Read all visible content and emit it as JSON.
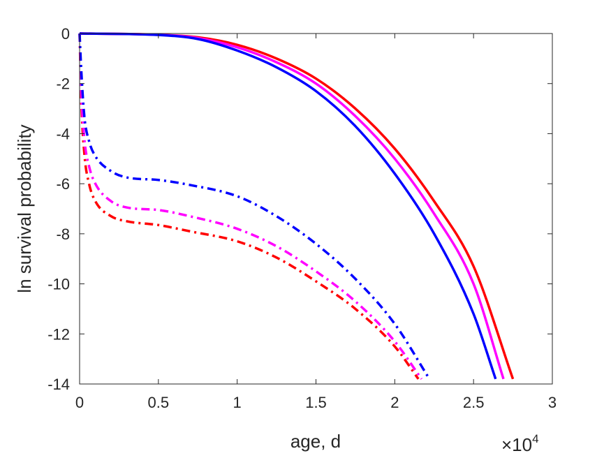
{
  "chart_data": {
    "type": "line",
    "title": "",
    "xlabel": "age, d",
    "ylabel": "ln survival probability",
    "x_exponent_label": "×10",
    "x_exponent_power": "4",
    "xlim": [
      0,
      30000
    ],
    "ylim": [
      -14,
      0
    ],
    "x_ticks": [
      0,
      5000,
      10000,
      15000,
      20000,
      25000,
      30000
    ],
    "x_tick_labels": [
      "0",
      "0.5",
      "1",
      "1.5",
      "2",
      "2.5",
      "3"
    ],
    "y_ticks": [
      0,
      -2,
      -4,
      -6,
      -8,
      -10,
      -12,
      -14
    ],
    "y_tick_labels": [
      "0",
      "-2",
      "-4",
      "-6",
      "-8",
      "-10",
      "-12",
      "-14"
    ],
    "grid": false,
    "legend": "none",
    "series": [
      {
        "color": "#ff0000",
        "style": "solid",
        "points": [
          [
            0,
            0
          ],
          [
            5000,
            -0.05
          ],
          [
            7500,
            -0.15
          ],
          [
            10000,
            -0.45
          ],
          [
            12500,
            -1.0
          ],
          [
            15000,
            -1.8
          ],
          [
            17500,
            -3.0
          ],
          [
            20000,
            -4.6
          ],
          [
            22500,
            -6.7
          ],
          [
            25000,
            -9.3
          ],
          [
            27500,
            -13.8
          ]
        ]
      },
      {
        "color": "#ff00ff",
        "style": "solid",
        "points": [
          [
            0,
            0
          ],
          [
            5000,
            -0.05
          ],
          [
            7500,
            -0.18
          ],
          [
            10000,
            -0.55
          ],
          [
            12500,
            -1.15
          ],
          [
            15000,
            -2.0
          ],
          [
            17500,
            -3.3
          ],
          [
            20000,
            -5.0
          ],
          [
            22500,
            -7.2
          ],
          [
            25000,
            -10.0
          ],
          [
            26900,
            -13.8
          ]
        ]
      },
      {
        "color": "#0000ff",
        "style": "solid",
        "points": [
          [
            0,
            0
          ],
          [
            5000,
            -0.06
          ],
          [
            7500,
            -0.22
          ],
          [
            10000,
            -0.68
          ],
          [
            12500,
            -1.35
          ],
          [
            15000,
            -2.3
          ],
          [
            17500,
            -3.7
          ],
          [
            20000,
            -5.6
          ],
          [
            22500,
            -8.0
          ],
          [
            25000,
            -11.2
          ],
          [
            26400,
            -13.8
          ]
        ]
      },
      {
        "color": "#ff0000",
        "style": "dashdot",
        "points": [
          [
            0,
            0
          ],
          [
            100,
            -2.6
          ],
          [
            300,
            -4.8
          ],
          [
            600,
            -6.0
          ],
          [
            1000,
            -6.7
          ],
          [
            2000,
            -7.3
          ],
          [
            3000,
            -7.5
          ],
          [
            5000,
            -7.65
          ],
          [
            7000,
            -7.9
          ],
          [
            10000,
            -8.3
          ],
          [
            12500,
            -8.95
          ],
          [
            15000,
            -9.9
          ],
          [
            17500,
            -11.0
          ],
          [
            20000,
            -12.5
          ],
          [
            21500,
            -13.8
          ]
        ]
      },
      {
        "color": "#ff00ff",
        "style": "dashdot",
        "points": [
          [
            0,
            0
          ],
          [
            100,
            -2.2
          ],
          [
            300,
            -4.2
          ],
          [
            600,
            -5.3
          ],
          [
            1000,
            -6.0
          ],
          [
            2000,
            -6.7
          ],
          [
            3000,
            -6.95
          ],
          [
            5000,
            -7.05
          ],
          [
            7000,
            -7.3
          ],
          [
            10000,
            -7.8
          ],
          [
            12500,
            -8.5
          ],
          [
            15000,
            -9.5
          ],
          [
            17500,
            -10.7
          ],
          [
            20000,
            -12.3
          ],
          [
            21700,
            -13.8
          ]
        ]
      },
      {
        "color": "#0000ff",
        "style": "dashdot",
        "points": [
          [
            0,
            0
          ],
          [
            100,
            -1.4
          ],
          [
            300,
            -3.3
          ],
          [
            600,
            -4.3
          ],
          [
            1000,
            -4.9
          ],
          [
            2000,
            -5.5
          ],
          [
            3000,
            -5.75
          ],
          [
            5000,
            -5.85
          ],
          [
            7000,
            -6.05
          ],
          [
            10000,
            -6.5
          ],
          [
            12500,
            -7.3
          ],
          [
            15000,
            -8.4
          ],
          [
            17500,
            -9.8
          ],
          [
            20000,
            -11.6
          ],
          [
            22200,
            -13.8
          ]
        ]
      }
    ]
  }
}
